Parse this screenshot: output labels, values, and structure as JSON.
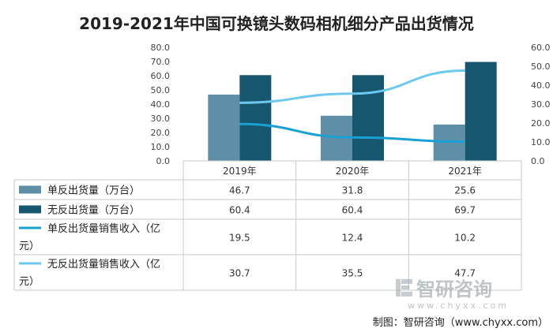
{
  "chart_data": {
    "type": "bar",
    "title": "2019-2021年中国可换镜头数码相机细分产品出货情况",
    "categories": [
      "2019年",
      "2020年",
      "2021年"
    ],
    "left_axis": {
      "min": 0,
      "max": 80,
      "step": 10,
      "ticks": [
        "0.0",
        "10.0",
        "20.0",
        "30.0",
        "40.0",
        "50.0",
        "60.0",
        "70.0",
        "80.0"
      ]
    },
    "right_axis": {
      "min": 0,
      "max": 60,
      "step": 10,
      "ticks": [
        "0.0",
        "10.0",
        "20.0",
        "30.0",
        "40.0",
        "50.0",
        "60.0"
      ]
    },
    "series": [
      {
        "name": "单反出货量（万台）",
        "kind": "bar",
        "axis": "left",
        "color": "#5f8ea7",
        "values": [
          46.7,
          31.8,
          25.6
        ],
        "labels": [
          "46.7",
          "31.8",
          "25.6"
        ]
      },
      {
        "name": "无反出货量（万台）",
        "kind": "bar",
        "axis": "left",
        "color": "#17566f",
        "values": [
          60.4,
          60.4,
          69.7
        ],
        "labels": [
          "60.4",
          "60.4",
          "69.7"
        ]
      },
      {
        "name": "单反出货量销售收入（亿元）",
        "kind": "line",
        "axis": "right",
        "color": "#1aa0d6",
        "values": [
          19.5,
          12.4,
          10.2
        ],
        "labels": [
          "19.5",
          "12.4",
          "10.2"
        ],
        "name_lines": [
          "单反出货量销售收入（亿",
          "元）"
        ]
      },
      {
        "name": "无反出货量销售收入（亿元）",
        "kind": "line",
        "axis": "right",
        "color": "#6cc8ef",
        "values": [
          30.7,
          35.5,
          47.7
        ],
        "labels": [
          "30.7",
          "35.5",
          "47.7"
        ],
        "name_lines": [
          "无反出货量销售收入（亿",
          "元）"
        ]
      }
    ]
  },
  "watermark": {
    "brand": "智研咨询",
    "url": "www.chyxx.com"
  },
  "source": "制图：智研咨询（www.chyxx.com）"
}
